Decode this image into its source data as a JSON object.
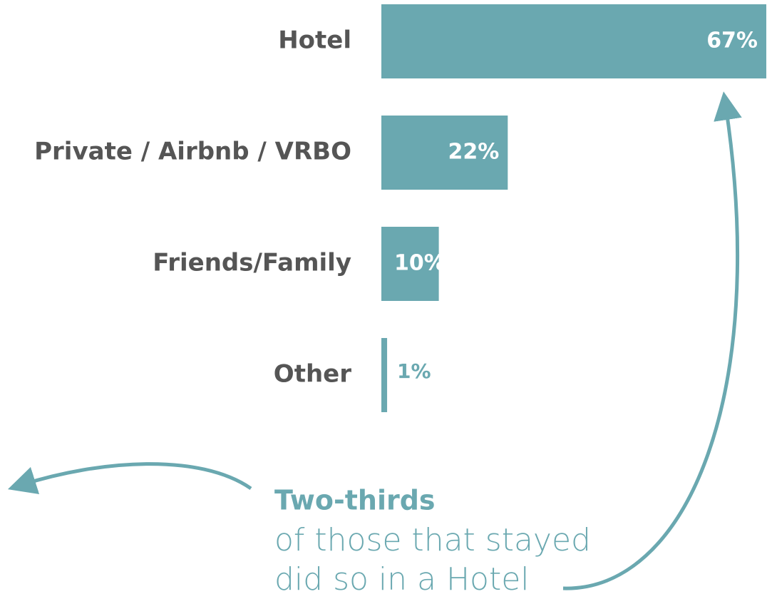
{
  "chart_data": {
    "type": "bar",
    "orientation": "horizontal",
    "categories": [
      "Hotel",
      "Private / Airbnb / VRBO",
      "Friends/Family",
      "Other"
    ],
    "values": [
      67,
      22,
      10,
      1
    ],
    "value_labels": [
      "67%",
      "22%",
      "10%",
      "1%"
    ],
    "color": "#6aa8b0",
    "annotation": {
      "heading": "Two-thirds",
      "lines": [
        "of those that stayed",
        "did so in a Hotel"
      ]
    }
  }
}
